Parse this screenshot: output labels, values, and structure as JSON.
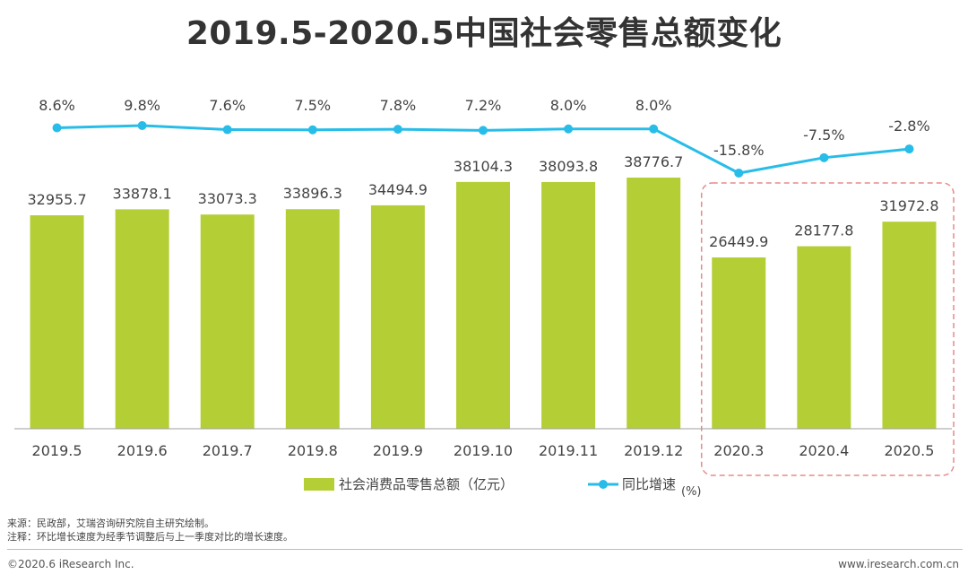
{
  "title": "2019.5-2020.5中国社会零售总额变化",
  "colors": {
    "bar": "#b4cf35",
    "line": "#28bde8",
    "highlight_border": "#e58b8b",
    "axis": "#9e9e9e"
  },
  "chart_data": {
    "type": "bar",
    "title": "2019.5-2020.5中国社会零售总额变化",
    "categories": [
      "2019.5",
      "2019.6",
      "2019.7",
      "2019.8",
      "2019.9",
      "2019.10",
      "2019.11",
      "2019.12",
      "2020.3",
      "2020.4",
      "2020.5"
    ],
    "series": [
      {
        "name": "社会消费品零售总额（亿元）",
        "type": "bar",
        "values": [
          32955.7,
          33878.1,
          33073.3,
          33896.3,
          34494.9,
          38104.3,
          38093.8,
          38776.7,
          26449.9,
          28177.8,
          31972.8
        ],
        "labels": [
          "32955.7",
          "33878.1",
          "33073.3",
          "33896.3",
          "34494.9",
          "38104.3",
          "38093.8",
          "38776.7",
          "26449.9",
          "28177.8",
          "31972.8"
        ]
      },
      {
        "name": "同比增速",
        "type": "line",
        "values": [
          8.6,
          9.8,
          7.6,
          7.5,
          7.8,
          7.2,
          8.0,
          8.0,
          -15.8,
          -7.5,
          -2.8
        ],
        "labels": [
          "8.6%",
          "9.8%",
          "7.6%",
          "7.5%",
          "7.8%",
          "7.2%",
          "8.0%",
          "8.0%",
          "-15.8%",
          "-7.5%",
          "-2.8%"
        ]
      }
    ],
    "ylim_bar": [
      0,
      42000
    ],
    "highlighted_categories": [
      "2020.3",
      "2020.4",
      "2020.5"
    ],
    "legend": {
      "position": "bottom",
      "bar_label": "社会消费品零售总额（亿元）",
      "line_label": "同比增速",
      "unit": "(%)"
    }
  },
  "notes": {
    "source": "来源：民政部，艾瑞咨询研究院自主研究绘制。",
    "note": "注释：环比增长速度为经季节调整后与上一季度对比的增长速度。"
  },
  "footer": {
    "copyright": "©2020.6 iResearch Inc.",
    "website": "www.iresearch.com.cn"
  }
}
